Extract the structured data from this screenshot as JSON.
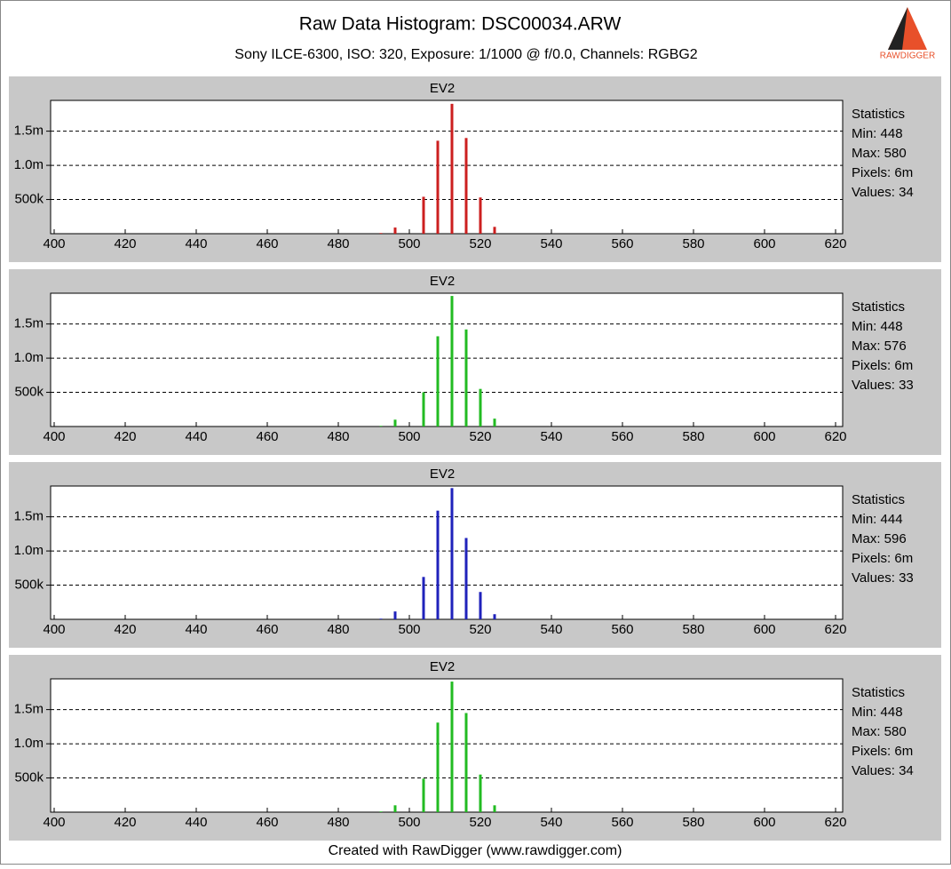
{
  "header": {
    "title": "Raw Data Histogram: DSC00034.ARW",
    "subtitle": "Sony ILCE-6300, ISO: 320, Exposure: 1/1000 @ f/0.0, Channels: RGBG2",
    "logo": "RAWDIGGER"
  },
  "footer": "Created with RawDigger (www.rawdigger.com)",
  "chart_data": [
    {
      "type": "bar",
      "title": "EV2",
      "color": "#cc1f1f",
      "x": [
        492,
        496,
        504,
        508,
        512,
        516,
        520,
        524
      ],
      "values": [
        10000,
        90000,
        540000,
        1360000,
        1900000,
        1400000,
        530000,
        100000
      ],
      "xlim": [
        399,
        622
      ],
      "xticks": [
        400,
        420,
        440,
        460,
        480,
        500,
        520,
        540,
        560,
        580,
        600,
        620
      ],
      "ylim": [
        0,
        1950000
      ],
      "yticks": [
        {
          "value": 500000,
          "label": "500k"
        },
        {
          "value": 1000000,
          "label": "1.0m"
        },
        {
          "value": 1500000,
          "label": "1.5m"
        }
      ],
      "grid": true,
      "annotations": [
        "Statistics",
        "Min: 448",
        "Max: 580",
        "Pixels: 6m",
        "Values: 34"
      ]
    },
    {
      "type": "bar",
      "title": "EV2",
      "color": "#22bb22",
      "x": [
        492,
        496,
        504,
        508,
        512,
        516,
        520,
        524
      ],
      "values": [
        10000,
        100000,
        500000,
        1320000,
        1910000,
        1420000,
        550000,
        115000
      ],
      "xlim": [
        399,
        622
      ],
      "xticks": [
        400,
        420,
        440,
        460,
        480,
        500,
        520,
        540,
        560,
        580,
        600,
        620
      ],
      "ylim": [
        0,
        1950000
      ],
      "yticks": [
        {
          "value": 500000,
          "label": "500k"
        },
        {
          "value": 1000000,
          "label": "1.0m"
        },
        {
          "value": 1500000,
          "label": "1.5m"
        }
      ],
      "grid": true,
      "annotations": [
        "Statistics",
        "Min: 448",
        "Max: 576",
        "Pixels: 6m",
        "Values: 33"
      ]
    },
    {
      "type": "bar",
      "title": "EV2",
      "color": "#1f22bb",
      "x": [
        492,
        496,
        504,
        508,
        512,
        516,
        520,
        524
      ],
      "values": [
        10000,
        115000,
        620000,
        1590000,
        1920000,
        1190000,
        400000,
        75000
      ],
      "xlim": [
        399,
        622
      ],
      "xticks": [
        400,
        420,
        440,
        460,
        480,
        500,
        520,
        540,
        560,
        580,
        600,
        620
      ],
      "ylim": [
        0,
        1950000
      ],
      "yticks": [
        {
          "value": 500000,
          "label": "500k"
        },
        {
          "value": 1000000,
          "label": "1.0m"
        },
        {
          "value": 1500000,
          "label": "1.5m"
        }
      ],
      "grid": true,
      "annotations": [
        "Statistics",
        "Min: 444",
        "Max: 596",
        "Pixels: 6m",
        "Values: 33"
      ]
    },
    {
      "type": "bar",
      "title": "EV2",
      "color": "#22bb22",
      "x": [
        492,
        496,
        504,
        508,
        512,
        516,
        520,
        524
      ],
      "values": [
        10000,
        100000,
        490000,
        1310000,
        1910000,
        1450000,
        550000,
        100000
      ],
      "xlim": [
        399,
        622
      ],
      "xticks": [
        400,
        420,
        440,
        460,
        480,
        500,
        520,
        540,
        560,
        580,
        600,
        620
      ],
      "ylim": [
        0,
        1950000
      ],
      "yticks": [
        {
          "value": 500000,
          "label": "500k"
        },
        {
          "value": 1000000,
          "label": "1.0m"
        },
        {
          "value": 1500000,
          "label": "1.5m"
        }
      ],
      "grid": true,
      "annotations": [
        "Statistics",
        "Min: 448",
        "Max: 580",
        "Pixels: 6m",
        "Values: 34"
      ]
    }
  ]
}
